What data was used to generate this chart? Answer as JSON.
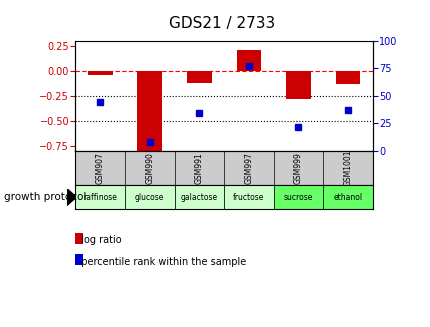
{
  "title": "GDS21 / 2733",
  "samples": [
    "GSM907",
    "GSM990",
    "GSM991",
    "GSM997",
    "GSM999",
    "GSM1001"
  ],
  "protocols": [
    "raffinose",
    "glucose",
    "galactose",
    "fructose",
    "sucrose",
    "ethanol"
  ],
  "log_ratio": [
    -0.04,
    -0.82,
    -0.12,
    0.21,
    -0.28,
    -0.13
  ],
  "percentile_rank": [
    44,
    8,
    34,
    77,
    22,
    37
  ],
  "bar_color": "#cc0000",
  "dot_color": "#0000cc",
  "ylim_left": [
    -0.8,
    0.3
  ],
  "ylim_right": [
    0,
    100
  ],
  "yticks_left": [
    -0.75,
    -0.5,
    -0.25,
    0,
    0.25
  ],
  "yticks_right": [
    0,
    25,
    50,
    75,
    100
  ],
  "hline_y": 0,
  "dotted_lines": [
    -0.25,
    -0.5
  ],
  "background_color": "#ffffff",
  "plot_bg": "#ffffff",
  "protocol_colors": [
    "#ccffcc",
    "#ccffcc",
    "#ccffcc",
    "#ccffcc",
    "#66ff66",
    "#66ff66"
  ],
  "sample_label_bg": "#cccccc",
  "growth_protocol_label": "growth protocol",
  "legend_items": [
    "log ratio",
    "percentile rank within the sample"
  ],
  "bar_width": 0.5,
  "title_fontsize": 11,
  "tick_fontsize": 7,
  "right_tick_color": "#0000cc",
  "left_tick_color": "#cc0000"
}
